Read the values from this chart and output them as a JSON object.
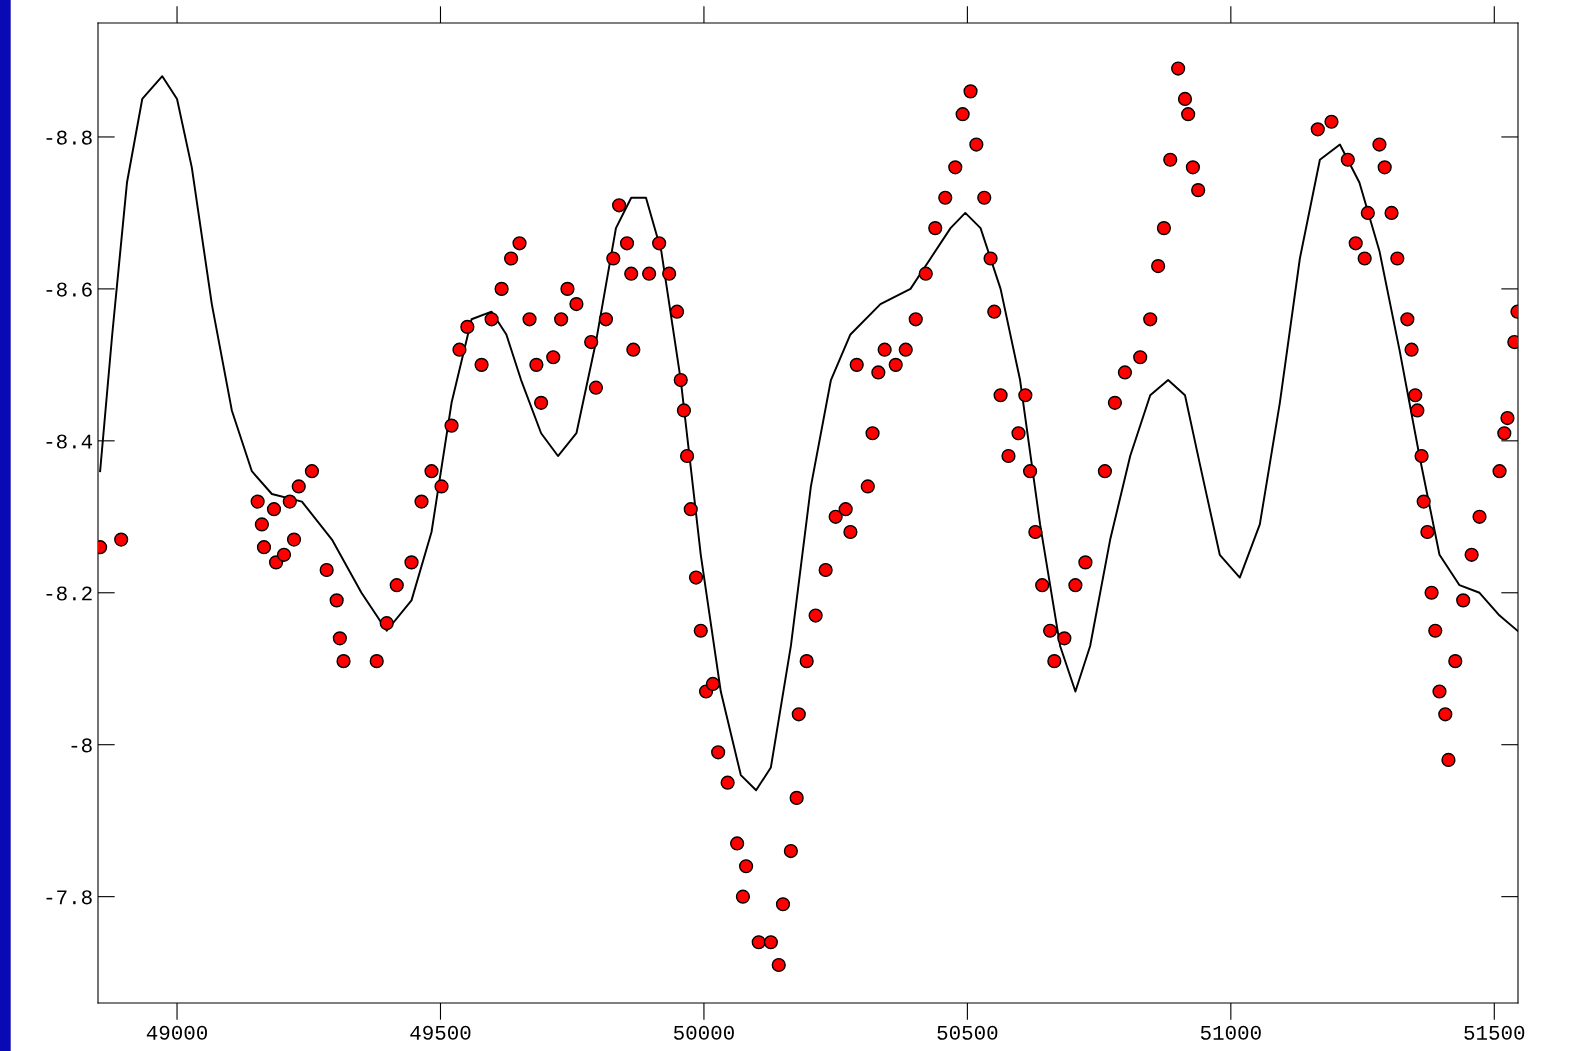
{
  "chart_data": {
    "type": "scatter",
    "xlim": [
      48850,
      51545
    ],
    "ylim": [
      -7.66,
      -8.95
    ],
    "xticks": [
      49000,
      49500,
      50000,
      50500,
      51000,
      51500
    ],
    "yticks": [
      {
        "value": -8.8,
        "label": "-8.8"
      },
      {
        "value": -8.6,
        "label": "-8.6"
      },
      {
        "value": -8.4,
        "label": "-8.4"
      },
      {
        "value": -8.2,
        "label": "-8.2"
      },
      {
        "value": -8,
        "label": "-8"
      },
      {
        "value": -7.8,
        "label": "-7.8"
      }
    ],
    "grid": false,
    "legend": false,
    "series": [
      {
        "color": "#ff0000",
        "marker": "circle",
        "x": [
          48854,
          48894,
          49153,
          49161,
          49165,
          49184,
          49188,
          49203,
          49214,
          49222,
          49231,
          49256,
          49284,
          49303,
          49309,
          49316,
          49379,
          49398,
          49417,
          49445,
          49464,
          49483,
          49502,
          49521,
          49536,
          49551,
          49578,
          49597,
          49616,
          49634,
          49650,
          49669,
          49682,
          49691,
          49714,
          49729,
          49741,
          49758,
          49786,
          49795,
          49814,
          49828,
          49839,
          49854,
          49862,
          49866,
          49896,
          49915,
          49934,
          49949,
          49956,
          49962,
          49968,
          49975,
          49985,
          49994,
          50004,
          50017,
          50027,
          50045,
          50063,
          50074,
          50080,
          50104,
          50127,
          50142,
          50150,
          50165,
          50176,
          50180,
          50195,
          50212,
          50231,
          50250,
          50269,
          50278,
          50290,
          50311,
          50320,
          50331,
          50343,
          50364,
          50383,
          50402,
          50421,
          50439,
          50458,
          50477,
          50491,
          50506,
          50517,
          50532,
          50544,
          50551,
          50563,
          50578,
          50597,
          50610,
          50619,
          50629,
          50642,
          50657,
          50665,
          50684,
          50705,
          50724,
          50761,
          50780,
          50799,
          50828,
          50847,
          50862,
          50873,
          50885,
          50900,
          50913,
          50919,
          50928,
          50938,
          51165,
          51191,
          51222,
          51237,
          51254,
          51260,
          51282,
          51292,
          51305,
          51316,
          51335,
          51343,
          51350,
          51354,
          51362,
          51366,
          51373,
          51381,
          51388,
          51396,
          51407,
          51413,
          51426,
          51441,
          51457,
          51472,
          51510,
          51519,
          51525,
          51538,
          51544
        ],
        "values": [
          -8.26,
          -8.27,
          -8.32,
          -8.29,
          -8.26,
          -8.31,
          -8.24,
          -8.25,
          -8.32,
          -8.27,
          -8.34,
          -8.36,
          -8.23,
          -8.19,
          -8.14,
          -8.11,
          -8.11,
          -8.16,
          -8.21,
          -8.24,
          -8.32,
          -8.36,
          -8.34,
          -8.42,
          -8.52,
          -8.55,
          -8.5,
          -8.56,
          -8.6,
          -8.64,
          -8.66,
          -8.56,
          -8.5,
          -8.45,
          -8.51,
          -8.56,
          -8.6,
          -8.58,
          -8.53,
          -8.47,
          -8.56,
          -8.64,
          -8.71,
          -8.66,
          -8.62,
          -8.52,
          -8.62,
          -8.66,
          -8.62,
          -8.57,
          -8.48,
          -8.44,
          -8.38,
          -8.31,
          -8.22,
          -8.15,
          -8.07,
          -8.08,
          -7.99,
          -7.95,
          -7.87,
          -7.8,
          -7.84,
          -7.74,
          -7.74,
          -7.71,
          -7.79,
          -7.86,
          -7.93,
          -8.04,
          -8.11,
          -8.17,
          -8.23,
          -8.3,
          -8.31,
          -8.28,
          -8.5,
          -8.34,
          -8.41,
          -8.49,
          -8.52,
          -8.5,
          -8.52,
          -8.56,
          -8.62,
          -8.68,
          -8.72,
          -8.76,
          -8.83,
          -8.86,
          -8.79,
          -8.72,
          -8.64,
          -8.57,
          -8.46,
          -8.38,
          -8.41,
          -8.46,
          -8.36,
          -8.28,
          -8.21,
          -8.15,
          -8.11,
          -8.14,
          -8.21,
          -8.24,
          -8.36,
          -8.45,
          -8.49,
          -8.51,
          -8.56,
          -8.63,
          -8.68,
          -8.77,
          -8.89,
          -8.85,
          -8.83,
          -8.76,
          -8.73,
          -8.81,
          -8.82,
          -8.77,
          -8.66,
          -8.64,
          -8.7,
          -8.79,
          -8.76,
          -8.7,
          -8.64,
          -8.56,
          -8.52,
          -8.46,
          -8.44,
          -8.38,
          -8.32,
          -8.28,
          -8.2,
          -8.15,
          -8.07,
          -8.04,
          -7.98,
          -8.11,
          -8.19,
          -8.25,
          -8.3,
          -8.36,
          -8.41,
          -8.43,
          -8.53,
          -8.57
        ]
      },
      {
        "type": "line",
        "color": "#000000",
        "marker": "none",
        "line_style": "solid",
        "x": [
          48854,
          48877,
          48905,
          48934,
          48972,
          49000,
          49028,
          49066,
          49104,
          49142,
          49180,
          49237,
          49294,
          49350,
          49398,
          49445,
          49483,
          49521,
          49559,
          49597,
          49625,
          49653,
          49691,
          49723,
          49758,
          49795,
          49833,
          49862,
          49890,
          49919,
          49956,
          49994,
          50032,
          50070,
          50099,
          50127,
          50165,
          50203,
          50241,
          50278,
          50335,
          50392,
          50430,
          50468,
          50496,
          50525,
          50563,
          50600,
          50638,
          50676,
          50705,
          50733,
          50771,
          50809,
          50847,
          50881,
          50913,
          50941,
          50979,
          51017,
          51055,
          51093,
          51131,
          51169,
          51207,
          51244,
          51282,
          51320,
          51358,
          51396,
          51434,
          51472,
          51510,
          51544
        ],
        "values": [
          -8.36,
          -8.54,
          -8.74,
          -8.85,
          -8.88,
          -8.85,
          -8.76,
          -8.58,
          -8.44,
          -8.36,
          -8.33,
          -8.32,
          -8.27,
          -8.2,
          -8.15,
          -8.19,
          -8.28,
          -8.45,
          -8.56,
          -8.57,
          -8.54,
          -8.48,
          -8.41,
          -8.38,
          -8.41,
          -8.53,
          -8.68,
          -8.72,
          -8.72,
          -8.65,
          -8.48,
          -8.25,
          -8.07,
          -7.96,
          -7.94,
          -7.97,
          -8.13,
          -8.34,
          -8.48,
          -8.54,
          -8.58,
          -8.6,
          -8.64,
          -8.68,
          -8.7,
          -8.68,
          -8.6,
          -8.48,
          -8.29,
          -8.13,
          -8.07,
          -8.13,
          -8.27,
          -8.38,
          -8.46,
          -8.48,
          -8.46,
          -8.37,
          -8.25,
          -8.22,
          -8.29,
          -8.45,
          -8.64,
          -8.77,
          -8.79,
          -8.74,
          -8.65,
          -8.52,
          -8.38,
          -8.25,
          -8.21,
          -8.2,
          -8.17,
          -8.15
        ]
      }
    ]
  }
}
